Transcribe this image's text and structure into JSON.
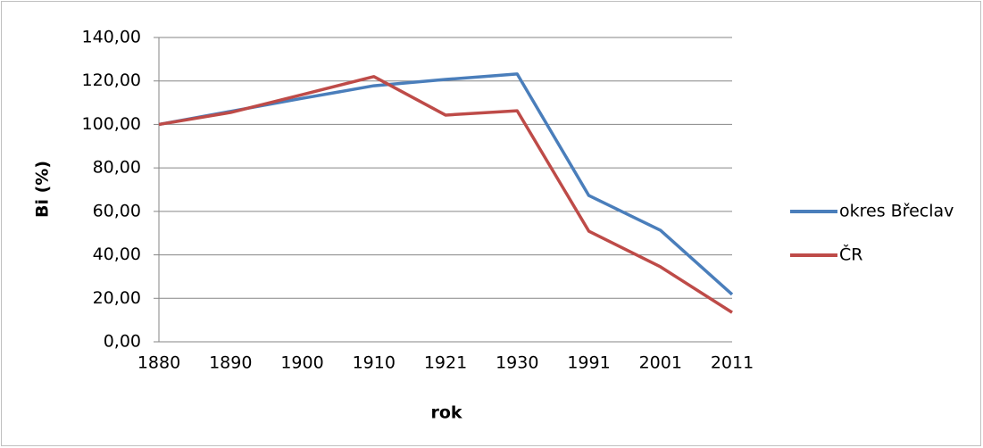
{
  "chart_data": {
    "type": "line",
    "xlabel": "rok",
    "ylabel": "Bi (%)",
    "categories": [
      "1880",
      "1890",
      "1900",
      "1910",
      "1921",
      "1930",
      "1991",
      "2001",
      "2011"
    ],
    "series": [
      {
        "name": "okres Břeclav",
        "color": "#4a7ebb",
        "values": [
          100,
          106,
          112,
          117.8,
          120.7,
          123.2,
          67.3,
          51.3,
          21.8
        ]
      },
      {
        "name": "ČR",
        "color": "#be4b48",
        "values": [
          100,
          105.5,
          113.7,
          122,
          104.3,
          106.3,
          50.9,
          34.5,
          13.5
        ]
      }
    ],
    "ylim": [
      0,
      140
    ],
    "yticks": [
      {
        "value": 0,
        "label": "0,00"
      },
      {
        "value": 20,
        "label": "20,00"
      },
      {
        "value": 40,
        "label": "40,00"
      },
      {
        "value": 60,
        "label": "60,00"
      },
      {
        "value": 80,
        "label": "80,00"
      },
      {
        "value": 100,
        "label": "100,00"
      },
      {
        "value": 120,
        "label": "120,00"
      },
      {
        "value": 140,
        "label": "140,00"
      }
    ],
    "grid": true,
    "legend": "right"
  }
}
